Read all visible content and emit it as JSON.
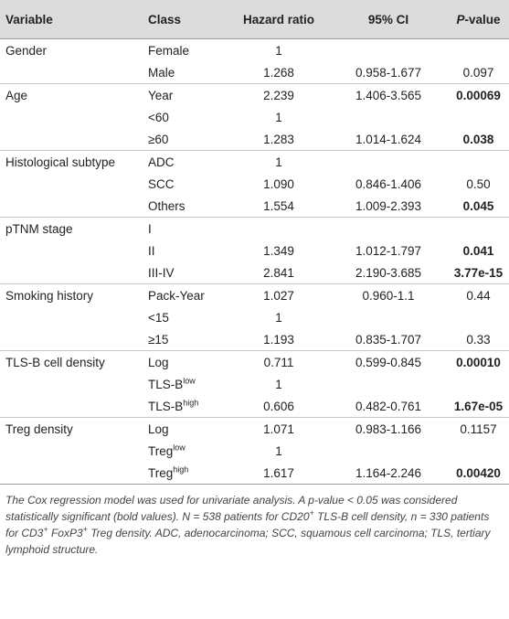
{
  "table": {
    "header": {
      "variable": "Variable",
      "class": "Class",
      "hr": "Hazard ratio",
      "ci": "95% CI",
      "p": {
        "italic": "P",
        "text": "-value"
      }
    },
    "rows": [
      {
        "variable": "Gender",
        "class": {
          "text": "Female"
        },
        "hr": "1"
      },
      {
        "class": {
          "text": "Male"
        },
        "hr": "1.268",
        "ci": "0.958-1.677",
        "p": "0.097"
      },
      {
        "variable": "Age",
        "class": {
          "text": "Year"
        },
        "hr": "2.239",
        "ci": "1.406-3.565",
        "p": "0.00069",
        "p_bold": true
      },
      {
        "class": {
          "text": "<60"
        },
        "hr": "1"
      },
      {
        "class": {
          "text": "≥60"
        },
        "hr": "1.283",
        "ci": "1.014-1.624",
        "p": "0.038",
        "p_bold": true
      },
      {
        "variable": "Histological subtype",
        "class": {
          "text": "ADC"
        },
        "hr": "1"
      },
      {
        "class": {
          "text": "SCC"
        },
        "hr": "1.090",
        "ci": "0.846-1.406",
        "p": "0.50"
      },
      {
        "class": {
          "text": "Others"
        },
        "hr": "1.554",
        "ci": "1.009-2.393",
        "p": "0.045",
        "p_bold": true
      },
      {
        "variable": "pTNM stage",
        "class": {
          "text": "I"
        }
      },
      {
        "class": {
          "text": "II"
        },
        "hr": "1.349",
        "ci": "1.012-1.797",
        "p": "0.041",
        "p_bold": true
      },
      {
        "class": {
          "text": "III-IV"
        },
        "hr": "2.841",
        "ci": "2.190-3.685",
        "p": "3.77e-15",
        "p_bold": true
      },
      {
        "variable": "Smoking history",
        "class": {
          "text": "Pack-Year"
        },
        "hr": "1.027",
        "ci": "0.960-1.1",
        "p": "0.44"
      },
      {
        "class": {
          "text": "<15"
        },
        "hr": "1"
      },
      {
        "class": {
          "text": "≥15"
        },
        "hr": "1.193",
        "ci": "0.835-1.707",
        "p": "0.33"
      },
      {
        "variable": "TLS-B cell density",
        "class": {
          "text": "Log"
        },
        "hr": "0.711",
        "ci": "0.599-0.845",
        "p": "0.00010",
        "p_bold": true
      },
      {
        "class": {
          "text": "TLS-B",
          "sup": "low"
        },
        "hr": "1"
      },
      {
        "class": {
          "text": "TLS-B",
          "sup": "high"
        },
        "hr": "0.606",
        "ci": "0.482-0.761",
        "p": "1.67e-05",
        "p_bold": true
      },
      {
        "variable": "Treg density",
        "class": {
          "text": "Log"
        },
        "hr": "1.071",
        "ci": "0.983-1.166",
        "p": "0.1157"
      },
      {
        "class": {
          "text": "Treg",
          "sup": "low"
        },
        "hr": "1"
      },
      {
        "class": {
          "text": "Treg",
          "sup": "high"
        },
        "hr": "1.617",
        "ci": "1.164-2.246",
        "p": "0.00420",
        "p_bold": true
      }
    ],
    "footnote": [
      {
        "text": "The Cox regression model was used for univariate analysis. A p-value < 0.05 was considered statistically significant (bold values). N = 538 patients for CD20"
      },
      {
        "sup": "+"
      },
      {
        "text": " TLS-B cell density, n = 330 patients for CD3"
      },
      {
        "sup": "+"
      },
      {
        "text": " FoxP3"
      },
      {
        "sup": "+"
      },
      {
        "text": " Treg density. ADC, adenocarcinoma; SCC, squamous cell carcinoma; TLS, tertiary lymphoid structure."
      }
    ]
  }
}
